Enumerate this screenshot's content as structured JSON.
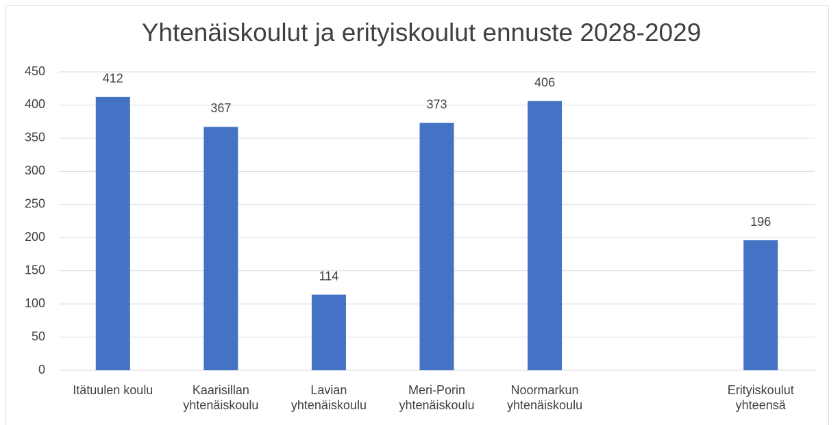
{
  "chart_data": {
    "type": "bar",
    "title": "Yhtenäiskoulut ja erityiskoulut ennuste 2028-2029",
    "categories": [
      "Itätuulen koulu",
      "Kaarisillan\nyhtenäiskoulu",
      "Lavian\nyhtenäiskoulu",
      "Meri-Porin\nyhtenäiskoulu",
      "Noormarkun\nyhtenäiskoulu",
      null,
      "Erityiskoulut\nyhteensä"
    ],
    "values": [
      412,
      367,
      114,
      373,
      406,
      null,
      196
    ],
    "color": "#4472c4",
    "ylim": [
      0,
      450
    ],
    "yticks": [
      0,
      50,
      100,
      150,
      200,
      250,
      300,
      350,
      400,
      450
    ],
    "grid": true
  }
}
